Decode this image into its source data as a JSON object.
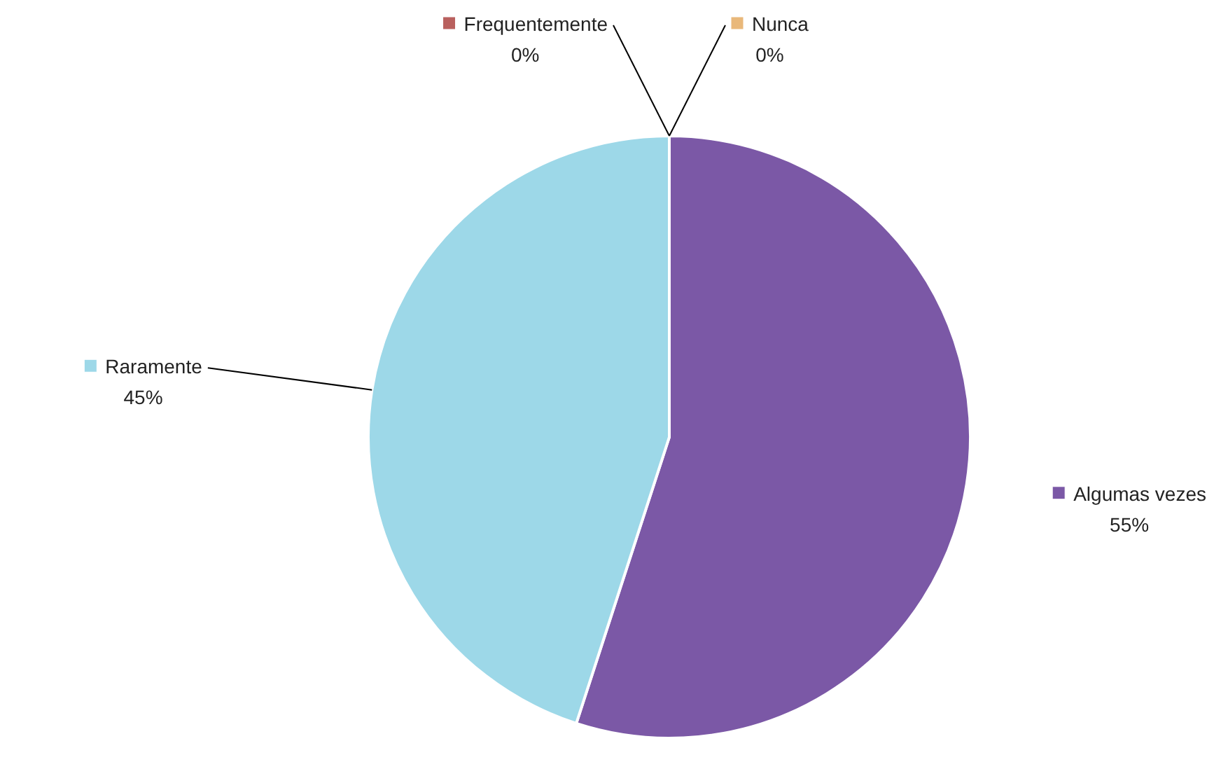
{
  "chart_data": {
    "type": "pie",
    "categories": [
      "Frequentemente",
      "Algumas vezes",
      "Raramente",
      "Nunca"
    ],
    "values": [
      0,
      55,
      45,
      0
    ],
    "colors": [
      "#b9605e",
      "#7b58a6",
      "#9dd8e8",
      "#e9b87a"
    ],
    "value_labels": [
      "0%",
      "55%",
      "45%",
      "0%"
    ],
    "legend": "top"
  }
}
